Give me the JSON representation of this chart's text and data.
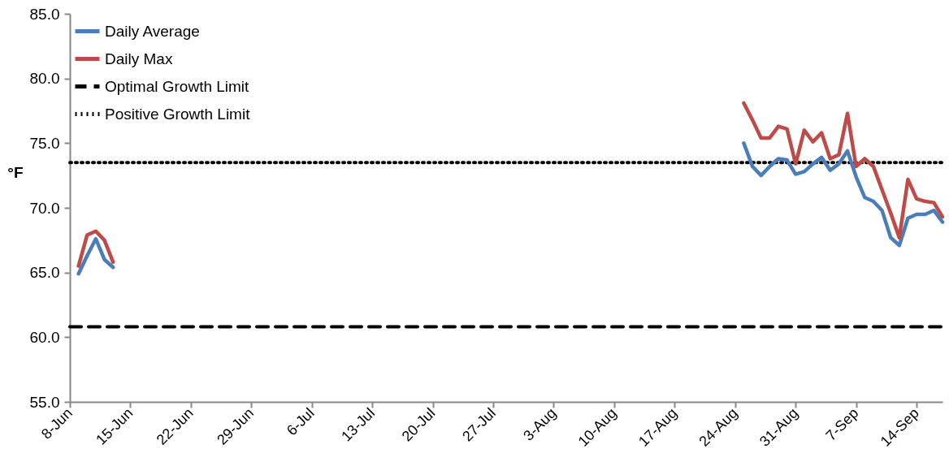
{
  "chart_data": {
    "type": "line",
    "ylabel": "°F",
    "legend": "top left",
    "grid": false,
    "line_style": "solid",
    "marker": "none",
    "xlim": [
      "--06-08",
      "--09-17"
    ],
    "xticks": [
      {
        "value": "--06-08",
        "label": "8-Jun"
      },
      {
        "value": "--06-15",
        "label": "15-Jun"
      },
      {
        "value": "--06-22",
        "label": "22-Jun"
      },
      {
        "value": "--06-29",
        "label": "29-Jun"
      },
      {
        "value": "--07-06",
        "label": "6-Jul"
      },
      {
        "value": "--07-13",
        "label": "13-Jul"
      },
      {
        "value": "--07-20",
        "label": "20-Jul"
      },
      {
        "value": "--07-27",
        "label": "27-Jul"
      },
      {
        "value": "--08-03",
        "label": "3-Aug"
      },
      {
        "value": "--08-10",
        "label": "10-Aug"
      },
      {
        "value": "--08-17",
        "label": "17-Aug"
      },
      {
        "value": "--08-24",
        "label": "24-Aug"
      },
      {
        "value": "--08-31",
        "label": "31-Aug"
      },
      {
        "value": "--09-07",
        "label": "7-Sep"
      },
      {
        "value": "--09-14",
        "label": "14-Sep"
      }
    ],
    "ylim": [
      55,
      85
    ],
    "yticks": [
      {
        "value": 55,
        "label": "55.0"
      },
      {
        "value": 60,
        "label": "60.0"
      },
      {
        "value": 65,
        "label": "65.0"
      },
      {
        "value": 70,
        "label": "70.0"
      },
      {
        "value": 75,
        "label": "75.0"
      },
      {
        "value": 80,
        "label": "80.0"
      },
      {
        "value": 85,
        "label": "85.0"
      }
    ],
    "x": [
      "--06-09",
      "--06-10",
      "--06-11",
      "--06-12",
      "--06-13",
      "--06-14",
      "--08-25",
      "--08-26",
      "--08-27",
      "--08-28",
      "--08-29",
      "--08-30",
      "--08-31",
      "--09-01",
      "--09-02",
      "--09-03",
      "--09-04",
      "--09-05",
      "--09-06",
      "--09-07",
      "--09-08",
      "--09-09",
      "--09-10",
      "--09-11",
      "--09-12",
      "--09-13",
      "--09-14",
      "--09-15",
      "--09-16",
      "--09-17"
    ],
    "series": [
      {
        "name": "Daily Average",
        "color": "#4a7ebb",
        "values": [
          64.9,
          66.3,
          67.6,
          66.0,
          65.4,
          null,
          75.0,
          73.2,
          72.5,
          73.2,
          73.8,
          73.7,
          72.6,
          72.8,
          73.4,
          73.9,
          72.9,
          73.4,
          74.4,
          72.4,
          70.8,
          70.5,
          69.8,
          67.7,
          67.1,
          69.2,
          69.5,
          69.5,
          69.8,
          68.9
        ]
      },
      {
        "name": "Daily Max",
        "color": "#be4b48",
        "values": [
          65.5,
          67.9,
          68.2,
          67.5,
          65.8,
          null,
          78.1,
          76.8,
          75.4,
          75.4,
          76.3,
          76.1,
          73.4,
          76.0,
          75.1,
          75.8,
          73.8,
          74.1,
          77.3,
          73.2,
          73.8,
          73.2,
          71.4,
          69.6,
          67.7,
          72.2,
          70.7,
          70.5,
          70.4,
          69.3
        ]
      }
    ],
    "ref_lines": [
      {
        "axis": "y",
        "value": 60.8,
        "label": "Optimal Growth Limit",
        "color": "#000000",
        "line_style": "dashed"
      },
      {
        "axis": "y",
        "value": 73.5,
        "label": "Positive Growth Limit",
        "color": "#000000",
        "line_style": "dotted"
      }
    ]
  }
}
